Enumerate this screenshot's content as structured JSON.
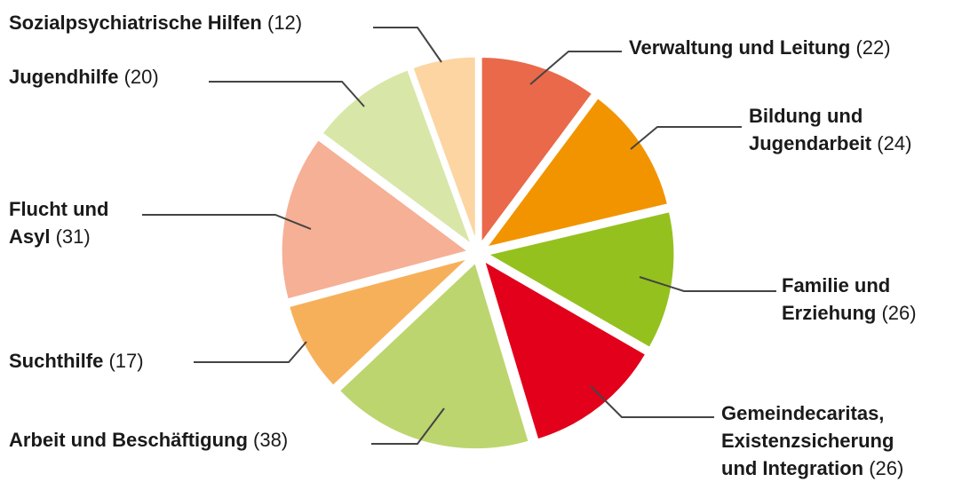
{
  "chart_data": {
    "type": "pie",
    "categories": [
      "Verwaltung und Leitung",
      "Bildung und\nJugendarbeit",
      "Familie und\nErziehung",
      "Gemeindecaritas,\nExistenzsicherung\nund Integration",
      "Arbeit und Beschäftigung",
      "Suchthilfe",
      "Flucht und\nAsyl",
      "Jugendhilfe",
      "Sozialpsychiatrische Hilfen"
    ],
    "values": [
      22,
      24,
      26,
      26,
      38,
      17,
      31,
      20,
      12
    ],
    "value_labels": [
      "(22)",
      "(24)",
      "(26)",
      "(26)",
      "(38)",
      "(17)",
      "(31)",
      "(20)",
      "(12)"
    ],
    "colors": [
      "#e9694a",
      "#f29400",
      "#95c11f",
      "#e2001a",
      "#bdd56e",
      "#f7b05a",
      "#f5b096",
      "#d8e6a8",
      "#fcd5a2"
    ]
  }
}
